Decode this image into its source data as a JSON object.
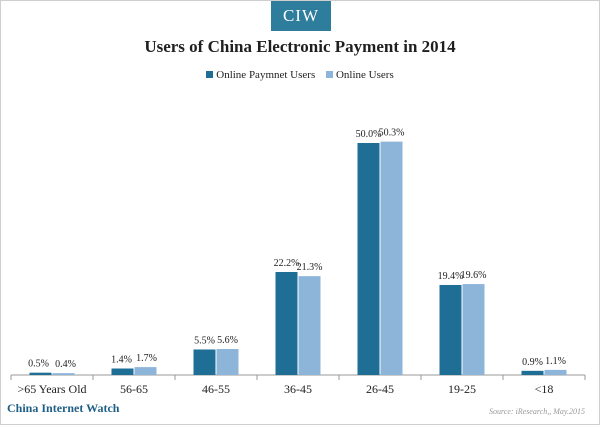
{
  "logo": "CIW",
  "watermark": "China Internet Watch",
  "source": "Source: iResearch,, May.2015",
  "colors": {
    "series1": "#1f6e95",
    "series2": "#8db4d9",
    "logo_bg": "#2e7d9c"
  },
  "chart_data": {
    "type": "bar",
    "title": "Users of China Electronic Payment in 2014",
    "xlabel": "",
    "ylabel": "",
    "ylim": [
      0,
      60
    ],
    "grid": false,
    "legend": "top-center",
    "categories": [
      ">65 Years Old",
      "56-65",
      "46-55",
      "36-45",
      "26-45",
      "19-25",
      "<18"
    ],
    "series": [
      {
        "name": "Online Paymnet Users",
        "values": [
          0.5,
          1.4,
          5.5,
          22.2,
          50.0,
          19.4,
          0.9
        ],
        "labels": [
          "0.5%",
          "1.4%",
          "5.5%",
          "22.2%",
          "50.0%",
          "19.4%",
          "0.9%"
        ]
      },
      {
        "name": "Online Users",
        "values": [
          0.4,
          1.7,
          5.6,
          21.3,
          50.3,
          19.6,
          1.1
        ],
        "labels": [
          "0.4%",
          "1.7%",
          "5.6%",
          "21.3%",
          "50.3%",
          "19.6%",
          "1.1%"
        ]
      }
    ]
  }
}
